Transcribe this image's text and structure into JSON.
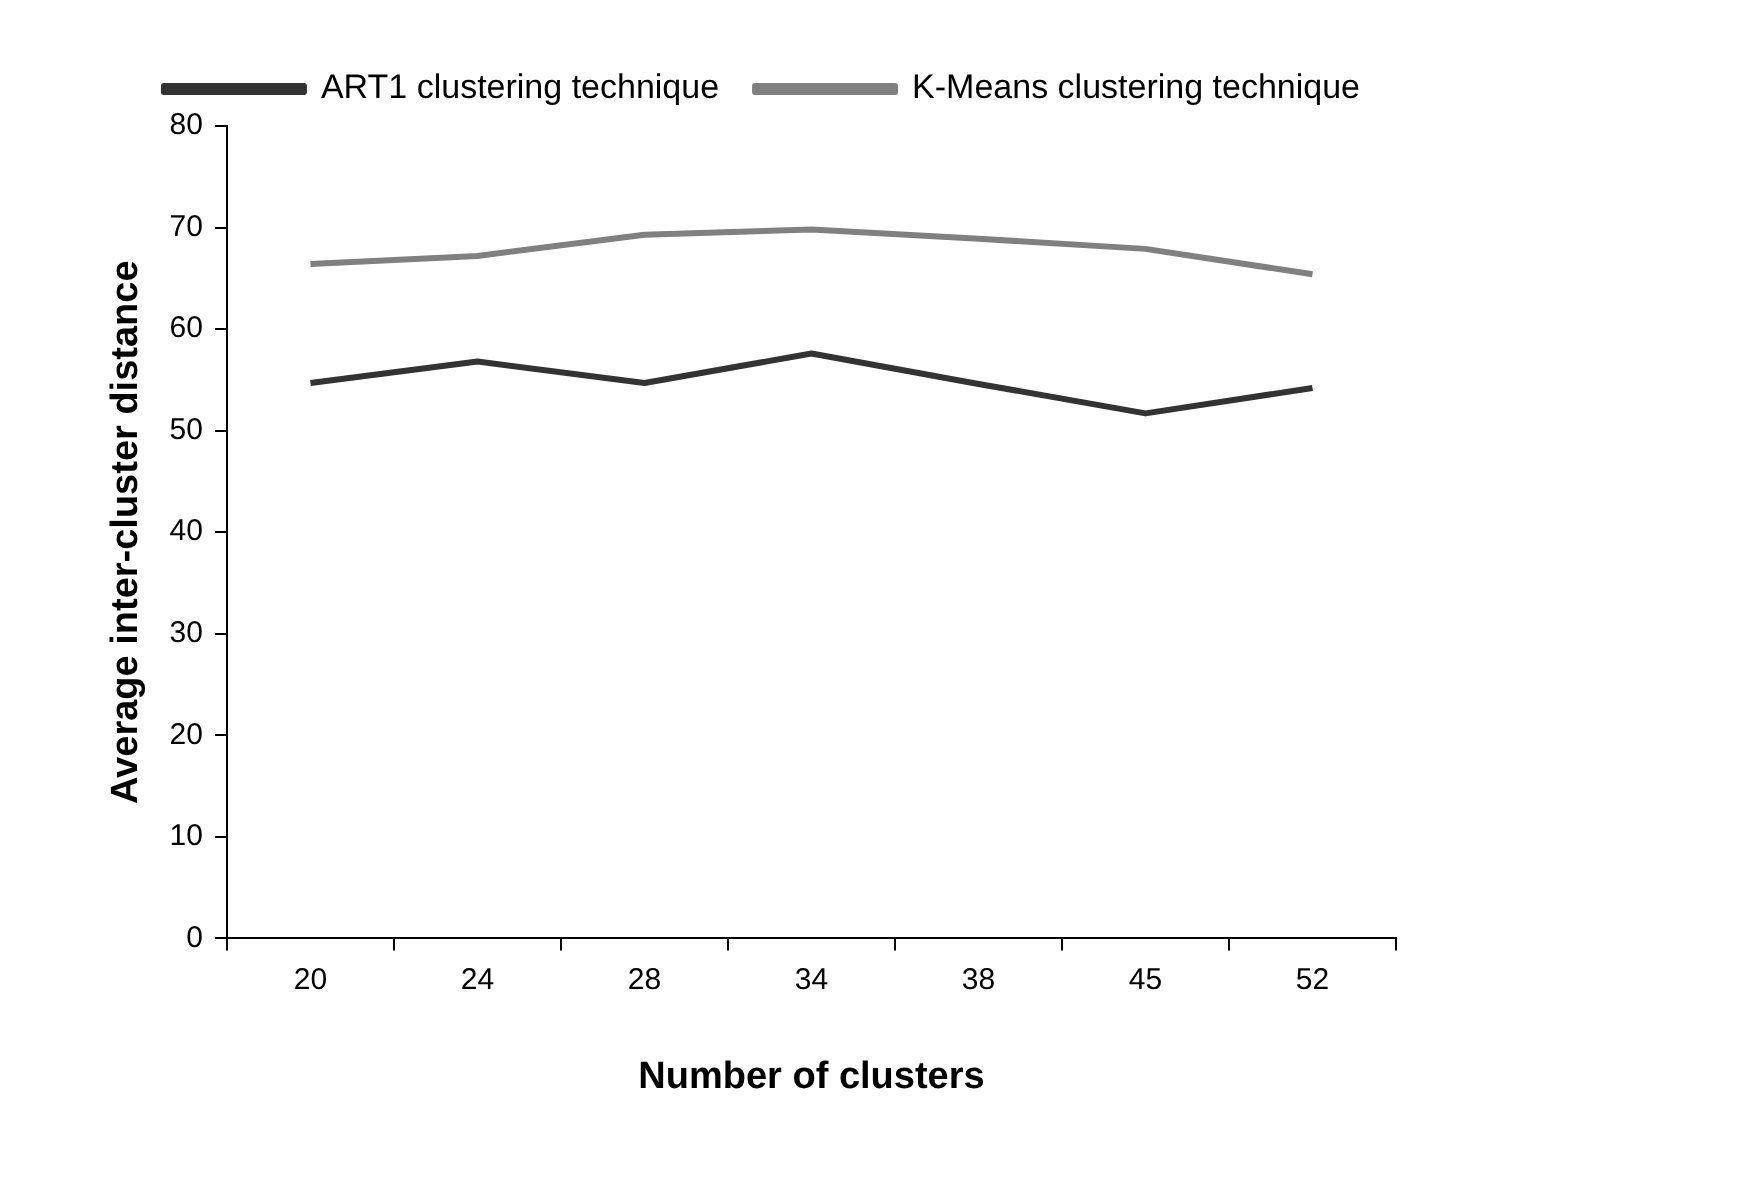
{
  "chart_data": {
    "type": "line",
    "xlabel": "Number of clusters",
    "ylabel": "Average inter-cluster distance",
    "categories": [
      "20",
      "24",
      "28",
      "34",
      "38",
      "45",
      "52"
    ],
    "series": [
      {
        "name": "ART1 clustering technique",
        "color": "#333333",
        "values": [
          54.7,
          56.8,
          54.7,
          57.6,
          54.6,
          51.7,
          54.2
        ]
      },
      {
        "name": "K-Means clustering technique",
        "color": "#808080",
        "values": [
          66.4,
          67.2,
          69.3,
          69.8,
          68.9,
          67.9,
          65.4
        ]
      }
    ],
    "ylim": [
      0,
      80
    ],
    "yticks": [
      0,
      10,
      20,
      30,
      40,
      50,
      60,
      70,
      80
    ],
    "grid": false,
    "legend": "top right",
    "marker": "none",
    "line_style": "solid"
  }
}
